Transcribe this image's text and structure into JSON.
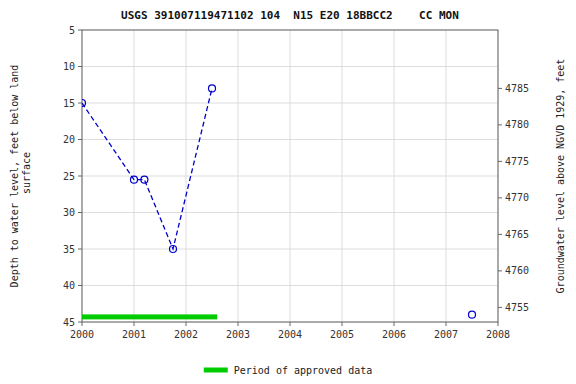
{
  "chart_data": {
    "type": "line",
    "title": "USGS 391007119471102 104  N15 E20 18BBCC2    CC MON",
    "ylabel": "Depth to water level, feet below land\n surface",
    "y2label": "Groundwater level above NGVD 1929, feet",
    "xlim": [
      2000,
      2008
    ],
    "ylim": [
      45,
      5
    ],
    "y2lim": [
      4753,
      4793
    ],
    "xticks": [
      2000,
      2001,
      2002,
      2003,
      2004,
      2005,
      2006,
      2007,
      2008
    ],
    "yticks": [
      5,
      10,
      15,
      20,
      25,
      30,
      35,
      40,
      45
    ],
    "y2ticks": [
      4755,
      4760,
      4765,
      4770,
      4775,
      4780,
      4785
    ],
    "grid": true,
    "legend": "bottom",
    "series": [
      {
        "type": "line",
        "color": "#0000cc",
        "line_style": "dashed",
        "marker": "circle",
        "x": [
          2000.0,
          2001.0,
          2001.2,
          2001.75,
          2002.5
        ],
        "values": [
          15.0,
          25.5,
          25.5,
          35.0,
          13.0
        ]
      },
      {
        "type": "scatter",
        "color": "#0000cc",
        "line_style": "none",
        "marker": "circle",
        "x": [
          2007.5
        ],
        "values": [
          44.0
        ]
      },
      {
        "name": "Period of approved data",
        "type": "bar",
        "orientation": "horizontal",
        "color": "#00cc00",
        "start": [
          2000.0
        ],
        "end": [
          2002.6
        ],
        "values": [
          44.3
        ]
      }
    ]
  }
}
